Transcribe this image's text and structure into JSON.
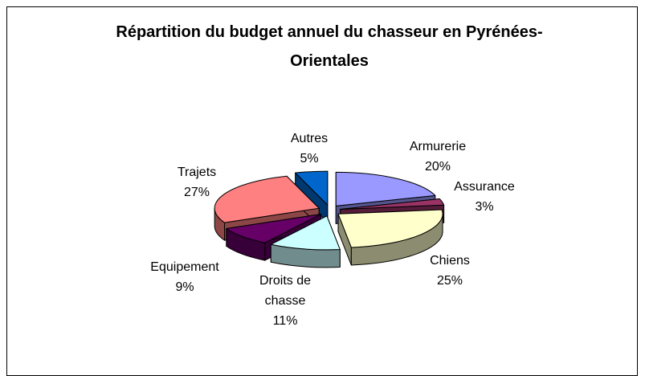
{
  "chart_data": {
    "type": "pie3d",
    "title": "Répartition du budget annuel du chasseur en Pyrénées-Orientales",
    "categories": [
      "Armurerie",
      "Assurance",
      "Chiens",
      "Droits de chasse",
      "Equipement",
      "Trajets",
      "Autres"
    ],
    "values": [
      20,
      3,
      25,
      11,
      9,
      27,
      5
    ],
    "value_labels": [
      "20%",
      "3%",
      "25%",
      "11%",
      "9%",
      "27%",
      "5%"
    ],
    "colors": [
      "#9999ff",
      "#993366",
      "#ffffcc",
      "#ccffff",
      "#660066",
      "#ff8080",
      "#0066cc"
    ]
  }
}
